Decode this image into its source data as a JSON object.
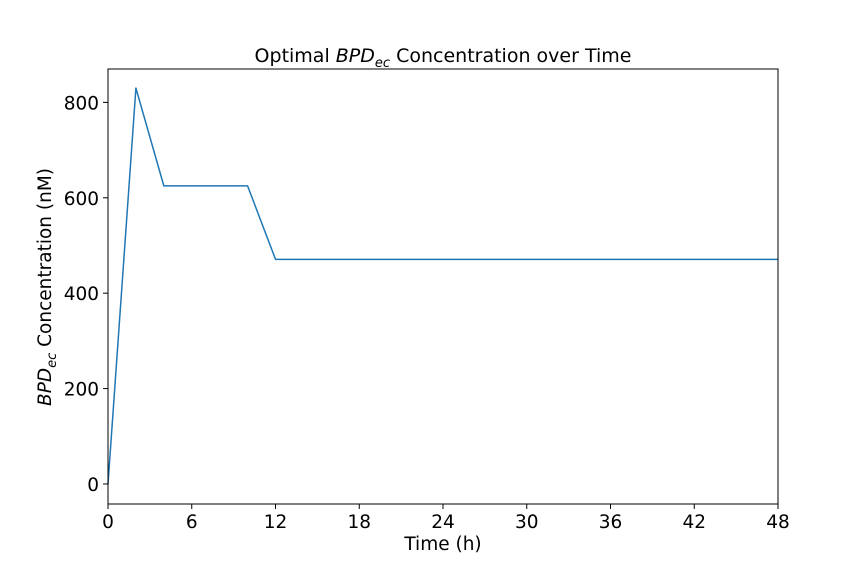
{
  "chart_data": {
    "type": "line",
    "title": {
      "prefix": "Optimal ",
      "symbol": "BPD",
      "subscript": "ec",
      "suffix": " Concentration over Time"
    },
    "xlabel": "Time (h)",
    "ylabel": {
      "symbol": "BPD",
      "subscript": "ec",
      "suffix": " Concentration (nM)"
    },
    "xlim": [
      0,
      48
    ],
    "ylim": [
      -42,
      870
    ],
    "xticks": [
      0,
      6,
      12,
      18,
      24,
      30,
      36,
      42,
      48
    ],
    "yticks": [
      0,
      200,
      400,
      600,
      800
    ],
    "grid": false,
    "series": [
      {
        "color": "#1f77b4",
        "x": [
          0,
          2,
          4,
          10,
          12,
          48
        ],
        "y": [
          0,
          830,
          625,
          625,
          471,
          471
        ]
      }
    ]
  }
}
